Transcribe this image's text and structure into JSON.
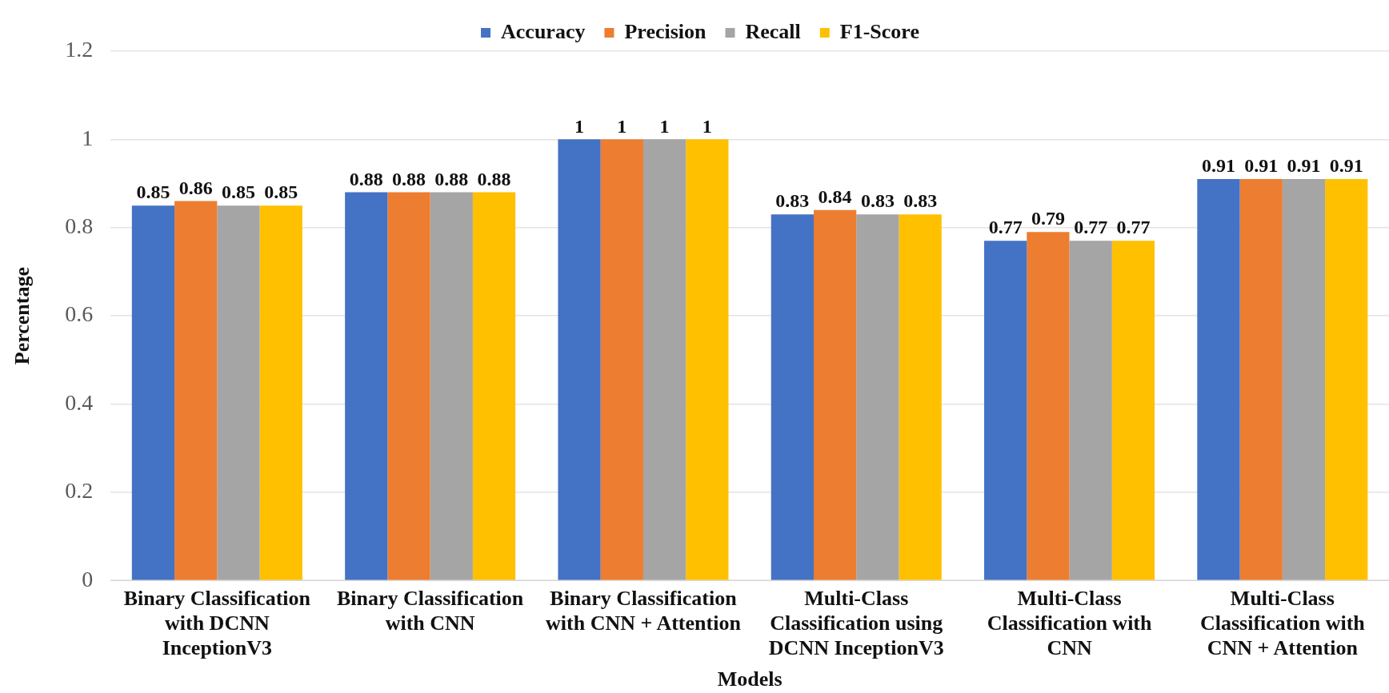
{
  "chart_data": {
    "type": "bar",
    "xlabel": "Models",
    "ylabel": "Percentage",
    "categories": [
      "Binary Classification with DCNN InceptionV3",
      "Binary Classification with CNN",
      "Binary Classification with CNN + Attention",
      "Multi-Class Classification using DCNN InceptionV3",
      "Multi-Class Classification with CNN",
      "Multi-Class Classification with CNN + Attention"
    ],
    "series": [
      {
        "name": "Accuracy",
        "color": "#4472c4",
        "values": [
          0.85,
          0.88,
          1,
          0.83,
          0.77,
          0.91
        ]
      },
      {
        "name": "Precision",
        "color": "#ed7d31",
        "values": [
          0.86,
          0.88,
          1,
          0.84,
          0.79,
          0.91
        ]
      },
      {
        "name": "Recall",
        "color": "#a5a5a5",
        "values": [
          0.85,
          0.88,
          1,
          0.83,
          0.77,
          0.91
        ]
      },
      {
        "name": "F1-Score",
        "color": "#ffc000",
        "values": [
          0.85,
          0.88,
          1,
          0.83,
          0.77,
          0.91
        ]
      }
    ],
    "ylim": [
      0,
      1.2
    ],
    "yticks": [
      0,
      0.2,
      0.4,
      0.6,
      0.8,
      1,
      1.2
    ],
    "grid": "y",
    "legend": "top",
    "data_labels": true
  }
}
